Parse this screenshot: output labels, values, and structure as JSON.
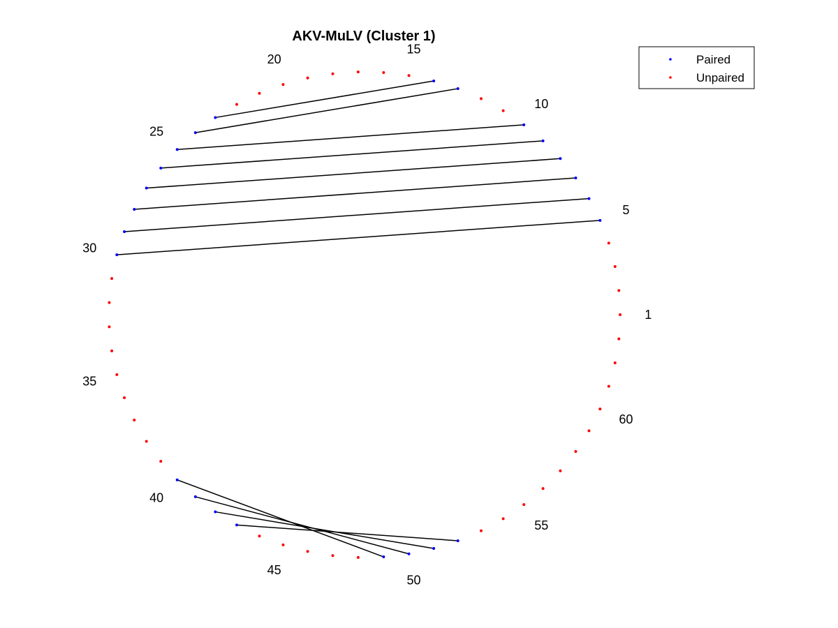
{
  "chart_data": {
    "type": "scatter",
    "title": "AKV-MuLV (Cluster 1)",
    "n_nucleotides": 63,
    "layout": "circle",
    "pairs": [
      [
        5,
        30
      ],
      [
        6,
        29
      ],
      [
        7,
        28
      ],
      [
        8,
        27
      ],
      [
        9,
        26
      ],
      [
        10,
        25
      ],
      [
        13,
        24
      ],
      [
        14,
        23
      ],
      [
        49,
        40
      ],
      [
        50,
        41
      ],
      [
        51,
        42
      ],
      [
        52,
        43
      ]
    ],
    "number_labels": [
      1,
      5,
      10,
      15,
      20,
      25,
      30,
      35,
      40,
      45,
      50,
      55,
      60
    ],
    "legend_placement": "top-right",
    "grid": false,
    "axes_visible": false,
    "series": [
      {
        "name": "Paired",
        "color": "#0000ff"
      },
      {
        "name": "Unpaired",
        "color": "#ff0000"
      }
    ],
    "pair_line_color": "#000000"
  }
}
